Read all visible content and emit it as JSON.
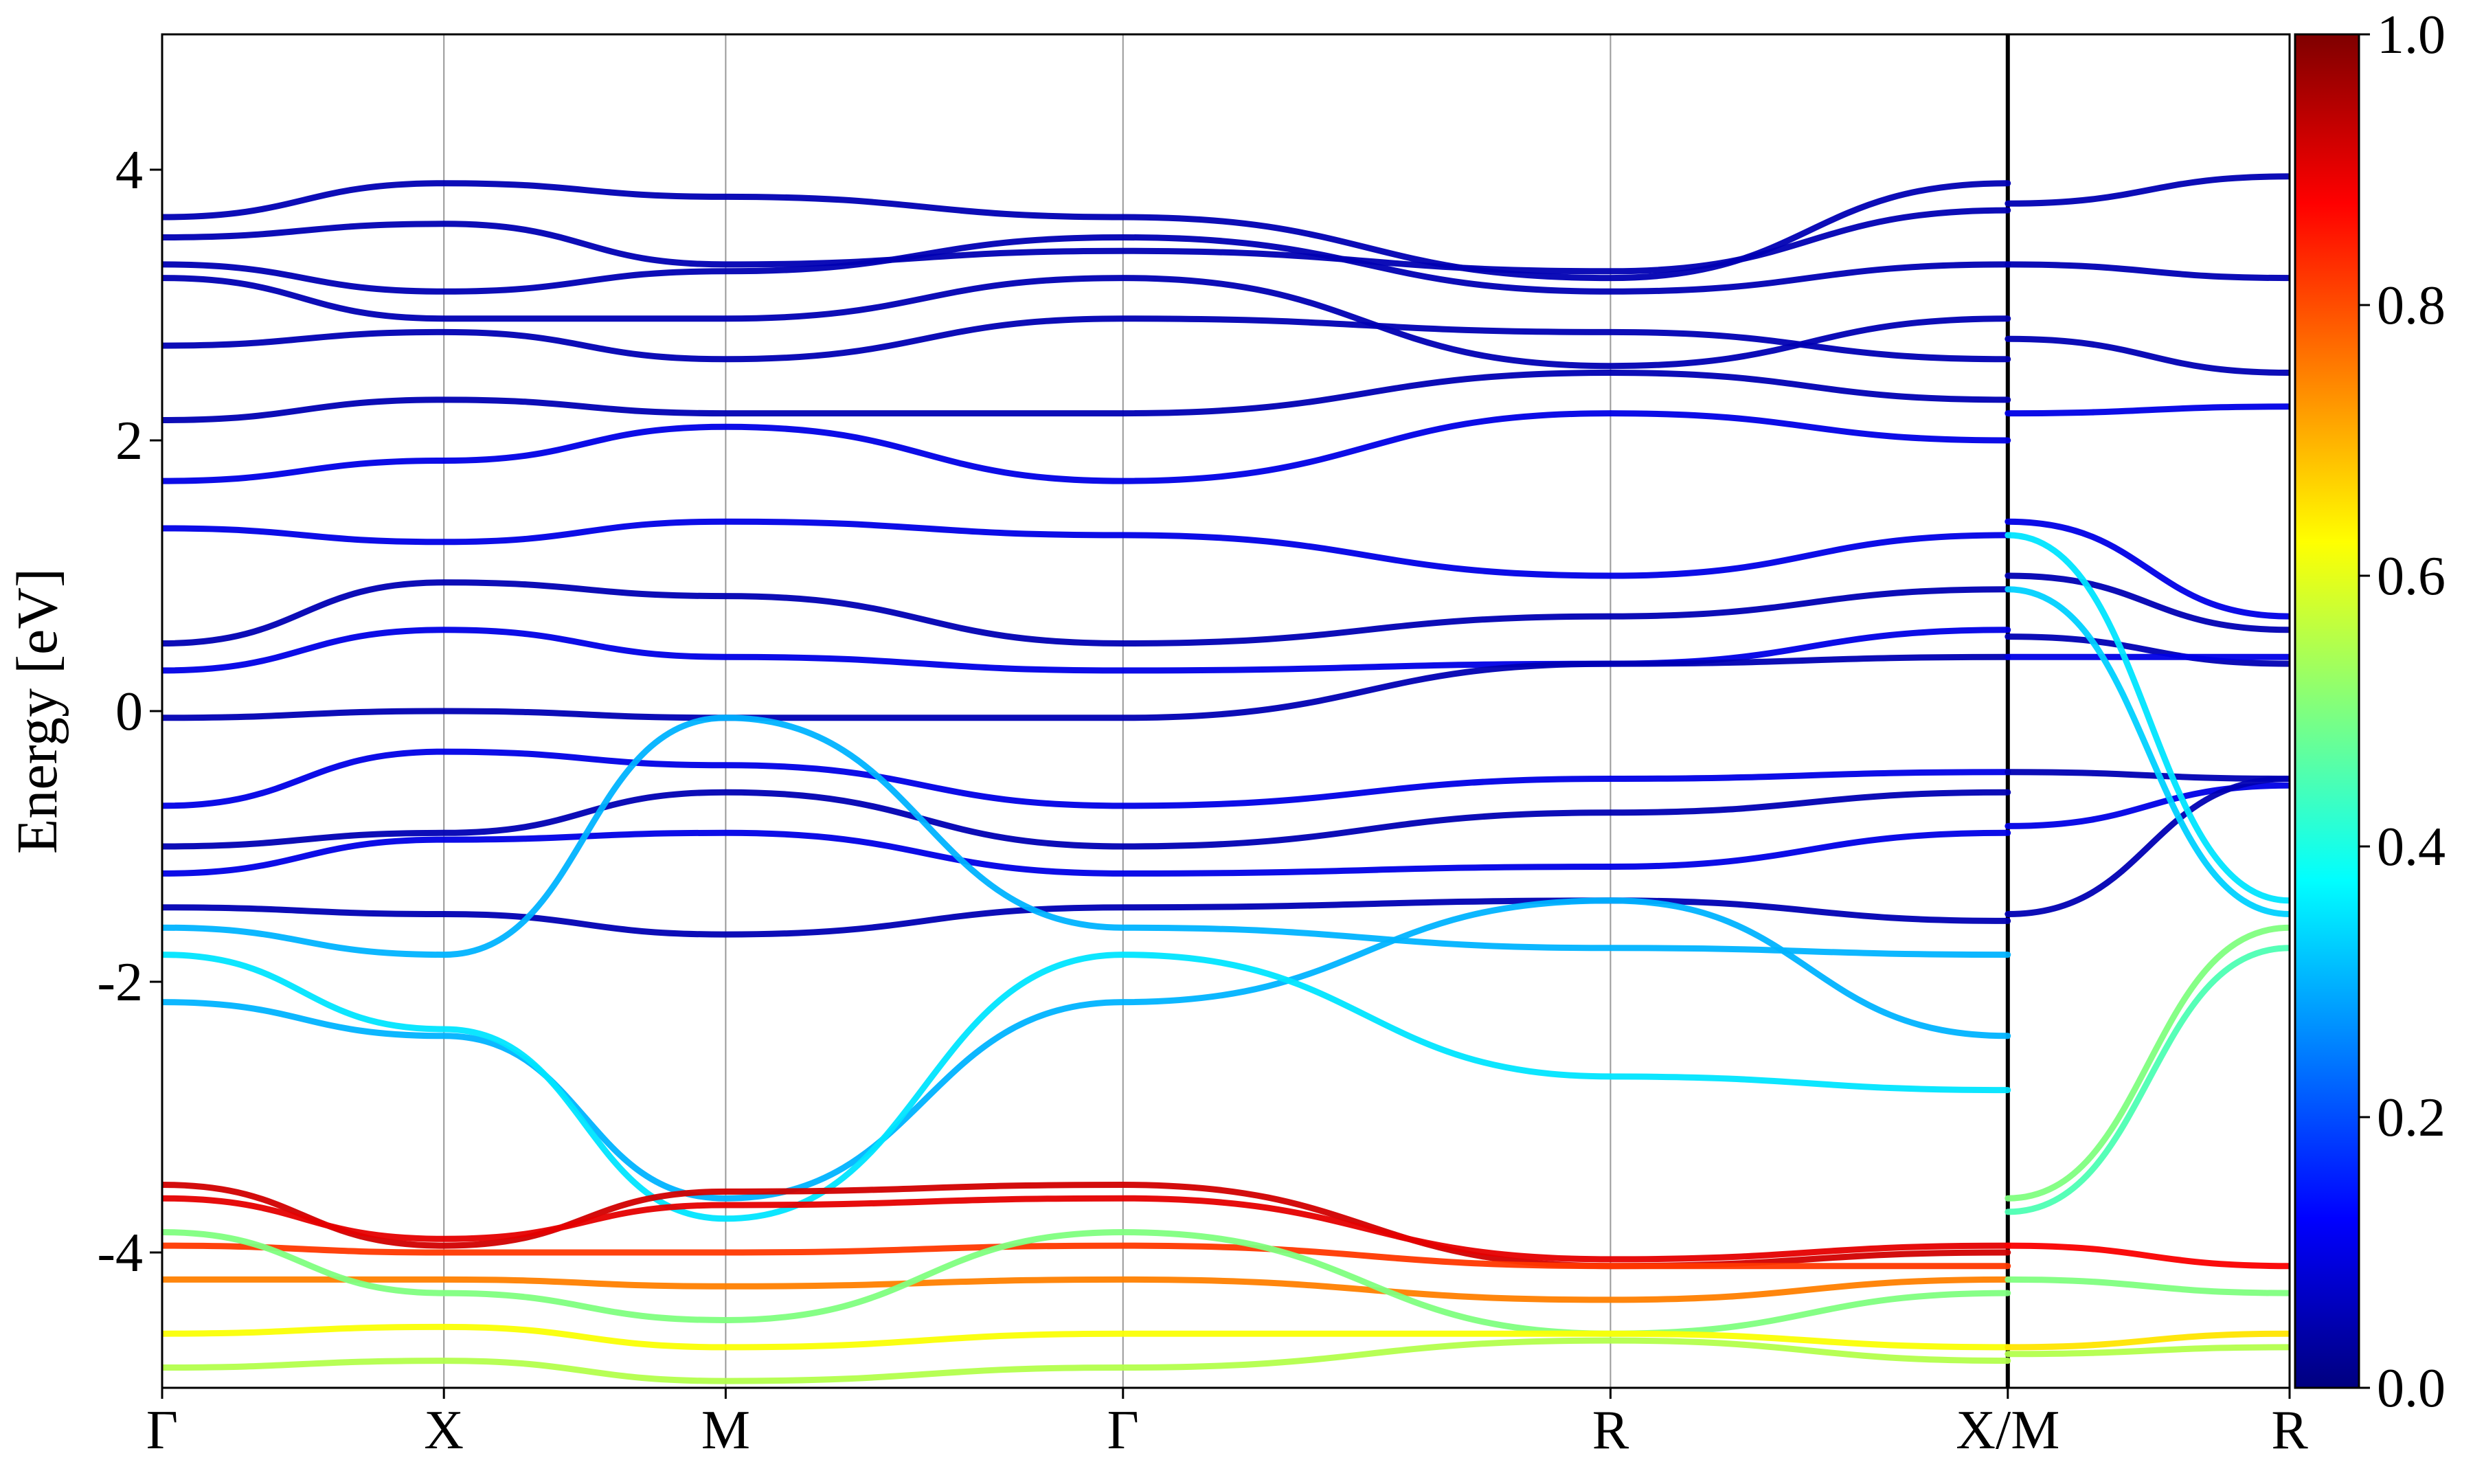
{
  "chart_data": {
    "type": "line",
    "title": "",
    "xlabel": "",
    "ylabel": "Energy [eV]",
    "ylim": [
      -5,
      5
    ],
    "yticks": [
      4,
      2,
      0,
      -2,
      -4
    ],
    "ytick_labels": [
      "4",
      "2",
      "0",
      "-2",
      "-4"
    ],
    "grid": "vertical lines at high-symmetry points",
    "kpath": [
      {
        "label": "Γ",
        "pos": 0.0
      },
      {
        "label": "X",
        "pos": 1.0
      },
      {
        "label": "M",
        "pos": 2.0
      },
      {
        "label": "Γ",
        "pos": 3.41
      },
      {
        "label": "R",
        "pos": 5.14
      },
      {
        "label": "X/M",
        "pos": 6.55
      },
      {
        "label": "R",
        "pos": 7.55
      }
    ],
    "path_break_at": 6.55,
    "colorbar": {
      "colormap": "jet",
      "range": [
        0.0,
        1.0
      ],
      "ticks": [
        "0.0",
        "0.2",
        "0.4",
        "0.6",
        "0.8",
        "1.0"
      ]
    },
    "bands": [
      {
        "k": [
          0,
          1,
          2,
          3.41,
          5.14,
          6.55
        ],
        "E": [
          3.65,
          3.9,
          3.8,
          3.65,
          3.2,
          3.9
        ],
        "w": 0.05
      },
      {
        "k": [
          0,
          1,
          2,
          3.41,
          5.14,
          6.55
        ],
        "E": [
          3.5,
          3.6,
          3.3,
          3.4,
          3.25,
          3.7
        ],
        "w": 0.05
      },
      {
        "k": [
          0,
          1,
          2,
          3.41,
          5.14,
          6.55
        ],
        "E": [
          3.3,
          3.1,
          3.25,
          3.5,
          3.1,
          3.3
        ],
        "w": 0.05
      },
      {
        "k": [
          0,
          1,
          2,
          3.41,
          5.14,
          6.55
        ],
        "E": [
          3.2,
          2.9,
          2.9,
          3.2,
          2.55,
          2.9
        ],
        "w": 0.05
      },
      {
        "k": [
          0,
          1,
          2,
          3.41,
          5.14,
          6.55
        ],
        "E": [
          2.7,
          2.8,
          2.6,
          2.9,
          2.8,
          2.6
        ],
        "w": 0.05
      },
      {
        "k": [
          0,
          1,
          2,
          3.41,
          5.14,
          6.55
        ],
        "E": [
          2.15,
          2.3,
          2.2,
          2.2,
          2.5,
          2.3
        ],
        "w": 0.05
      },
      {
        "k": [
          0,
          1,
          2,
          3.41,
          5.14,
          6.55
        ],
        "E": [
          1.7,
          1.85,
          2.1,
          1.7,
          2.2,
          2.0
        ],
        "w": 0.1
      },
      {
        "k": [
          0,
          1,
          2,
          3.41,
          5.14,
          6.55
        ],
        "E": [
          1.35,
          1.25,
          1.4,
          1.3,
          1.0,
          1.3
        ],
        "w": 0.1
      },
      {
        "k": [
          0,
          1,
          2,
          3.41,
          5.14,
          6.55
        ],
        "E": [
          0.5,
          0.95,
          0.85,
          0.5,
          0.7,
          0.9
        ],
        "w": 0.05
      },
      {
        "k": [
          0,
          1,
          2,
          3.41,
          5.14,
          6.55
        ],
        "E": [
          0.3,
          0.6,
          0.4,
          0.3,
          0.35,
          0.6
        ],
        "w": 0.1
      },
      {
        "k": [
          0,
          1,
          2,
          3.41,
          5.14,
          6.55
        ],
        "E": [
          -0.05,
          0.0,
          -0.05,
          -0.05,
          0.35,
          0.4
        ],
        "w": 0.05
      },
      {
        "k": [
          0,
          1,
          2,
          3.41,
          5.14,
          6.55
        ],
        "E": [
          -0.7,
          -0.3,
          -0.4,
          -0.7,
          -0.5,
          -0.45
        ],
        "w": 0.1
      },
      {
        "k": [
          0,
          1,
          2,
          3.41,
          5.14,
          6.55
        ],
        "E": [
          -1.0,
          -0.9,
          -0.6,
          -1.0,
          -0.75,
          -0.6
        ],
        "w": 0.05
      },
      {
        "k": [
          0,
          1,
          2,
          3.41,
          5.14,
          6.55
        ],
        "E": [
          -1.2,
          -0.95,
          -0.9,
          -1.2,
          -1.15,
          -0.9
        ],
        "w": 0.1
      },
      {
        "k": [
          0,
          1,
          2,
          3.41,
          5.14,
          6.55
        ],
        "E": [
          -1.45,
          -1.5,
          -1.65,
          -1.45,
          -1.4,
          -1.55
        ],
        "w": 0.05
      },
      {
        "k": [
          0,
          1,
          2,
          3.41,
          5.14,
          6.55
        ],
        "E": [
          -1.6,
          -1.8,
          -0.05,
          -1.6,
          -1.75,
          -1.8
        ],
        "w": 0.3
      },
      {
        "k": [
          0,
          1,
          2,
          3.41,
          5.14,
          6.55
        ],
        "E": [
          -2.15,
          -2.4,
          -3.6,
          -2.15,
          -1.4,
          -2.4
        ],
        "w": 0.3
      },
      {
        "k": [
          0,
          1,
          2,
          3.41,
          5.14,
          6.55
        ],
        "E": [
          -1.8,
          -2.35,
          -3.75,
          -1.8,
          -2.7,
          -2.8
        ],
        "w": 0.35
      },
      {
        "k": [
          0,
          1,
          2,
          3.41,
          5.14,
          6.55
        ],
        "E": [
          -3.5,
          -3.95,
          -3.55,
          -3.5,
          -4.1,
          -4.0
        ],
        "w": 0.92
      },
      {
        "k": [
          0,
          1,
          2,
          3.41,
          5.14,
          6.55
        ],
        "E": [
          -3.6,
          -3.9,
          -3.65,
          -3.6,
          -4.05,
          -3.95
        ],
        "w": 0.9
      },
      {
        "k": [
          0,
          1,
          2,
          3.41,
          5.14,
          6.55
        ],
        "E": [
          -3.95,
          -4.0,
          -4.0,
          -3.95,
          -4.1,
          -4.1
        ],
        "w": 0.82
      },
      {
        "k": [
          0,
          1,
          2,
          3.41,
          5.14,
          6.55
        ],
        "E": [
          -4.2,
          -4.2,
          -4.25,
          -4.2,
          -4.35,
          -4.2
        ],
        "w": 0.75
      },
      {
        "k": [
          0,
          1,
          2,
          3.41,
          5.14,
          6.55
        ],
        "E": [
          -3.85,
          -4.3,
          -4.5,
          -3.85,
          -4.6,
          -4.3
        ],
        "w": 0.5
      },
      {
        "k": [
          0,
          1,
          2,
          3.41,
          5.14,
          6.55
        ],
        "E": [
          -4.6,
          -4.55,
          -4.7,
          -4.6,
          -4.6,
          -4.7
        ],
        "w": 0.62
      },
      {
        "k": [
          0,
          1,
          2,
          3.41,
          5.14,
          6.55
        ],
        "E": [
          -4.85,
          -4.8,
          -4.95,
          -4.85,
          -4.65,
          -4.8
        ],
        "w": 0.55
      },
      {
        "k": [
          6.55,
          7.55
        ],
        "E": [
          3.75,
          3.95
        ],
        "w": 0.05
      },
      {
        "k": [
          6.55,
          7.55
        ],
        "E": [
          3.3,
          3.2
        ],
        "w": 0.05
      },
      {
        "k": [
          6.55,
          7.55
        ],
        "E": [
          2.75,
          2.5
        ],
        "w": 0.05
      },
      {
        "k": [
          6.55,
          7.55
        ],
        "E": [
          2.2,
          2.25
        ],
        "w": 0.1
      },
      {
        "k": [
          6.55,
          7.55
        ],
        "E": [
          1.4,
          0.7
        ],
        "w": 0.1
      },
      {
        "k": [
          6.55,
          7.55
        ],
        "E": [
          1.0,
          0.6
        ],
        "w": 0.05
      },
      {
        "k": [
          6.55,
          7.55
        ],
        "E": [
          0.55,
          0.35
        ],
        "w": 0.05
      },
      {
        "k": [
          6.55,
          7.55
        ],
        "E": [
          0.4,
          0.4
        ],
        "w": 0.1
      },
      {
        "k": [
          6.55,
          7.55
        ],
        "E": [
          -0.45,
          -0.5
        ],
        "w": 0.05
      },
      {
        "k": [
          6.55,
          7.55
        ],
        "E": [
          -0.85,
          -0.55
        ],
        "w": 0.1
      },
      {
        "k": [
          6.55,
          7.55
        ],
        "E": [
          -1.5,
          -0.5
        ],
        "w": 0.05
      },
      {
        "k": [
          6.55,
          7.55
        ],
        "E": [
          1.3,
          -1.4
        ],
        "w": 0.35
      },
      {
        "k": [
          6.55,
          7.55
        ],
        "E": [
          0.9,
          -1.5
        ],
        "w": 0.33
      },
      {
        "k": [
          6.55,
          7.55
        ],
        "E": [
          -3.6,
          -1.6
        ],
        "w": 0.5
      },
      {
        "k": [
          6.55,
          7.55
        ],
        "E": [
          -3.7,
          -1.75
        ],
        "w": 0.45
      },
      {
        "k": [
          6.55,
          7.55
        ],
        "E": [
          -3.95,
          -4.1
        ],
        "w": 0.88
      },
      {
        "k": [
          6.55,
          7.55
        ],
        "E": [
          -4.2,
          -4.3
        ],
        "w": 0.5
      },
      {
        "k": [
          6.55,
          7.55
        ],
        "E": [
          -4.7,
          -4.6
        ],
        "w": 0.65
      },
      {
        "k": [
          6.55,
          7.55
        ],
        "E": [
          -4.75,
          -4.7
        ],
        "w": 0.55
      }
    ]
  }
}
